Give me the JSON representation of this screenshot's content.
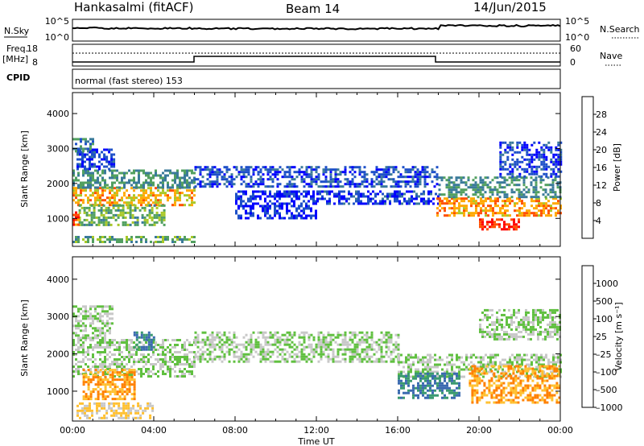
{
  "header": {
    "station": "Hankasalmi (fitACF)",
    "beam": "Beam 14",
    "date": "14/Jun/2015"
  },
  "strips": {
    "nsky": {
      "label": "N.Sky",
      "ticks": [
        "10^5",
        "10^0"
      ]
    },
    "nsearch": {
      "label": "N.Search",
      "ticks": [
        "10^5",
        "10^0"
      ]
    },
    "freq": {
      "label_line1": "Freq.",
      "label_line2": "[MHz]",
      "ticks": [
        "18",
        "8"
      ]
    },
    "nave": {
      "label": "Nave",
      "ticks": [
        "60",
        "0"
      ]
    },
    "cpid": {
      "label": "CPID",
      "text": "normal (fast stereo) 153"
    }
  },
  "chart_data": [
    {
      "type": "heatmap",
      "name": "power",
      "ylabel": "Slant Range [km]",
      "xlabel": "Time UT",
      "xlim": [
        0,
        24
      ],
      "ylim": [
        200,
        4600
      ],
      "x_ticks": [
        "00:00",
        "04:00",
        "08:00",
        "12:00",
        "16:00",
        "20:00",
        "00:00"
      ],
      "y_ticks": [
        "1000",
        "2000",
        "3000",
        "4000"
      ],
      "colorbar": {
        "label": "Power [dB]",
        "ticks": [
          "4",
          "8",
          "12",
          "16",
          "20",
          "24",
          "28"
        ],
        "colors": [
          "#0000ff",
          "#1e50c8",
          "#3a7a9a",
          "#52a060",
          "#a8c828",
          "#ffa800",
          "#ff5000",
          "#ff0000"
        ]
      },
      "bands": [
        {
          "t0": 0.0,
          "t1": 6.0,
          "r0": 1400,
          "r1": 1900,
          "v": 22
        },
        {
          "t0": 0.0,
          "t1": 6.0,
          "r0": 1900,
          "r1": 2400,
          "v": 12
        },
        {
          "t0": 0.2,
          "t1": 2.0,
          "r0": 2400,
          "r1": 3000,
          "v": 5
        },
        {
          "t0": 0.0,
          "t1": 1.0,
          "r0": 2900,
          "r1": 3300,
          "v": 10
        },
        {
          "t0": 0.3,
          "t1": 4.5,
          "r0": 800,
          "r1": 1400,
          "v": 15
        },
        {
          "t0": 0.0,
          "t1": 0.3,
          "r0": 700,
          "r1": 1200,
          "v": 27
        },
        {
          "t0": 0.0,
          "t1": 6.0,
          "r0": 300,
          "r1": 500,
          "v": 14
        },
        {
          "t0": 6.0,
          "t1": 18.0,
          "r0": 1900,
          "r1": 2500,
          "v": 6
        },
        {
          "t0": 8.0,
          "t1": 12.0,
          "r0": 1000,
          "r1": 1800,
          "v": 4
        },
        {
          "t0": 12.0,
          "t1": 18.0,
          "r0": 1400,
          "r1": 1800,
          "v": 5
        },
        {
          "t0": 17.9,
          "t1": 24.0,
          "r0": 1100,
          "r1": 1600,
          "v": 23
        },
        {
          "t0": 18.0,
          "t1": 24.0,
          "r0": 1600,
          "r1": 2200,
          "v": 12
        },
        {
          "t0": 20.0,
          "t1": 22.0,
          "r0": 700,
          "r1": 1000,
          "v": 28
        },
        {
          "t0": 21.0,
          "t1": 24.0,
          "r0": 2200,
          "r1": 3200,
          "v": 5
        }
      ]
    },
    {
      "type": "heatmap",
      "name": "velocity",
      "ylabel": "Slant Range [km]",
      "xlabel": "Time UT",
      "xlim": [
        0,
        24
      ],
      "ylim": [
        200,
        4600
      ],
      "x_ticks": [
        "00:00",
        "04:00",
        "08:00",
        "12:00",
        "16:00",
        "20:00",
        "00:00"
      ],
      "y_ticks": [
        "1000",
        "2000",
        "3000",
        "4000"
      ],
      "colorbar": {
        "label": "Velocity [m s⁻¹]",
        "ticks": [
          "1000",
          "500",
          "100",
          "25",
          "–25",
          "–100",
          "–500",
          "–1000"
        ],
        "colors": [
          "#1e40b4",
          "#3a6ab0",
          "#3a9a70",
          "#60c040",
          "#c8c8c8",
          "#ffc030",
          "#ff8000",
          "#ff2000"
        ]
      },
      "bands": [
        {
          "t0": 0.0,
          "t1": 6.0,
          "r0": 1400,
          "r1": 2400,
          "v": -25
        },
        {
          "t0": 0.5,
          "t1": 3.0,
          "r0": 800,
          "r1": 1600,
          "v": -500
        },
        {
          "t0": 0.2,
          "t1": 4.0,
          "r0": 300,
          "r1": 700,
          "v": -100
        },
        {
          "t0": 0.0,
          "t1": 2.0,
          "r0": 2400,
          "r1": 3300,
          "v": -25
        },
        {
          "t0": 3.0,
          "t1": 4.0,
          "r0": 2100,
          "r1": 2600,
          "v": 100
        },
        {
          "t0": 6.0,
          "t1": 16.0,
          "r0": 1800,
          "r1": 2600,
          "v": -25
        },
        {
          "t0": 16.0,
          "t1": 24.0,
          "r0": 1400,
          "r1": 2000,
          "v": -25
        },
        {
          "t0": 16.0,
          "t1": 19.0,
          "r0": 800,
          "r1": 1500,
          "v": 100
        },
        {
          "t0": 19.5,
          "t1": 24.0,
          "r0": 700,
          "r1": 1700,
          "v": -500
        },
        {
          "t0": 20.0,
          "t1": 24.0,
          "r0": 2400,
          "r1": 3200,
          "v": -25
        }
      ]
    }
  ],
  "colors": {
    "axis": "#000000",
    "background": "#ffffff"
  }
}
